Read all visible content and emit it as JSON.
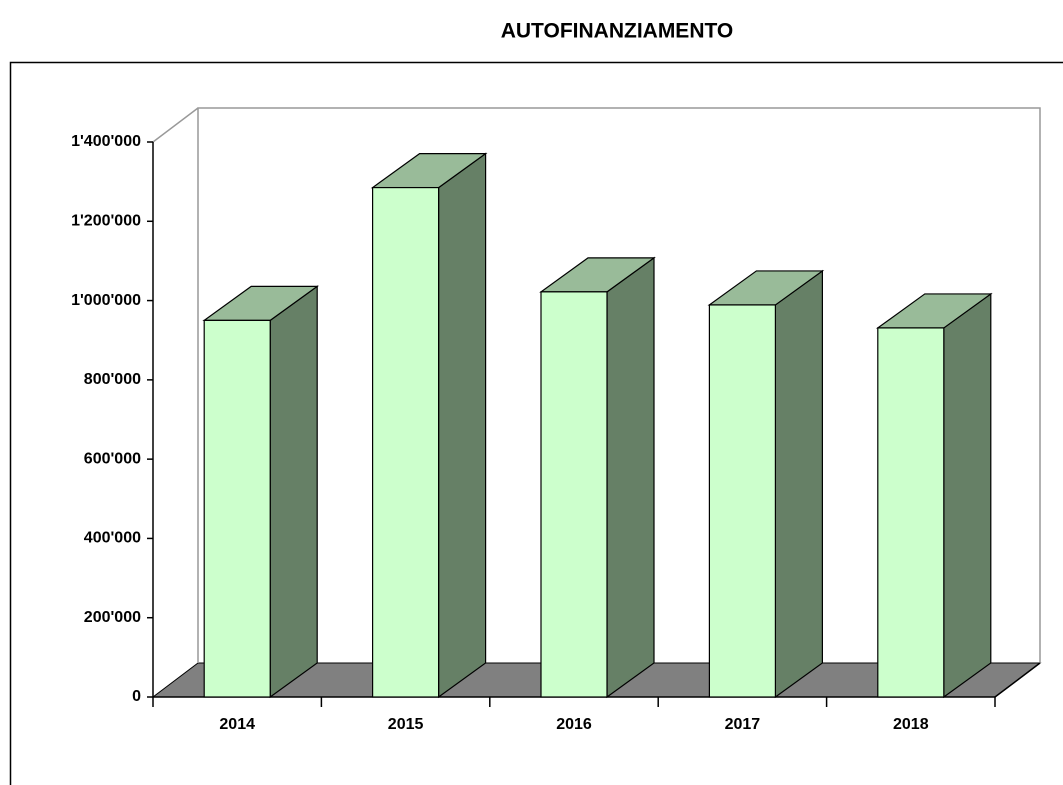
{
  "chart_data": {
    "type": "bar3d",
    "title": "AUTOFINANZIAMENTO",
    "categories": [
      "2014",
      "2015",
      "2016",
      "2017",
      "2018"
    ],
    "values": [
      950000,
      1285000,
      1022000,
      989000,
      931000
    ],
    "color": "#ccffcc",
    "ylim": [
      0,
      1400000
    ],
    "yticks": [
      0,
      {
        "value": 200000,
        "label": "200'000"
      },
      {
        "value": 400000,
        "label": "400'000"
      },
      {
        "value": 600000,
        "label": "600'000"
      },
      {
        "value": 800000,
        "label": "800'000"
      },
      {
        "value": 1000000,
        "label": "1'000'000"
      },
      {
        "value": 1200000,
        "label": "1'200'000"
      },
      {
        "value": 1400000,
        "label": "1'400'000"
      }
    ]
  }
}
